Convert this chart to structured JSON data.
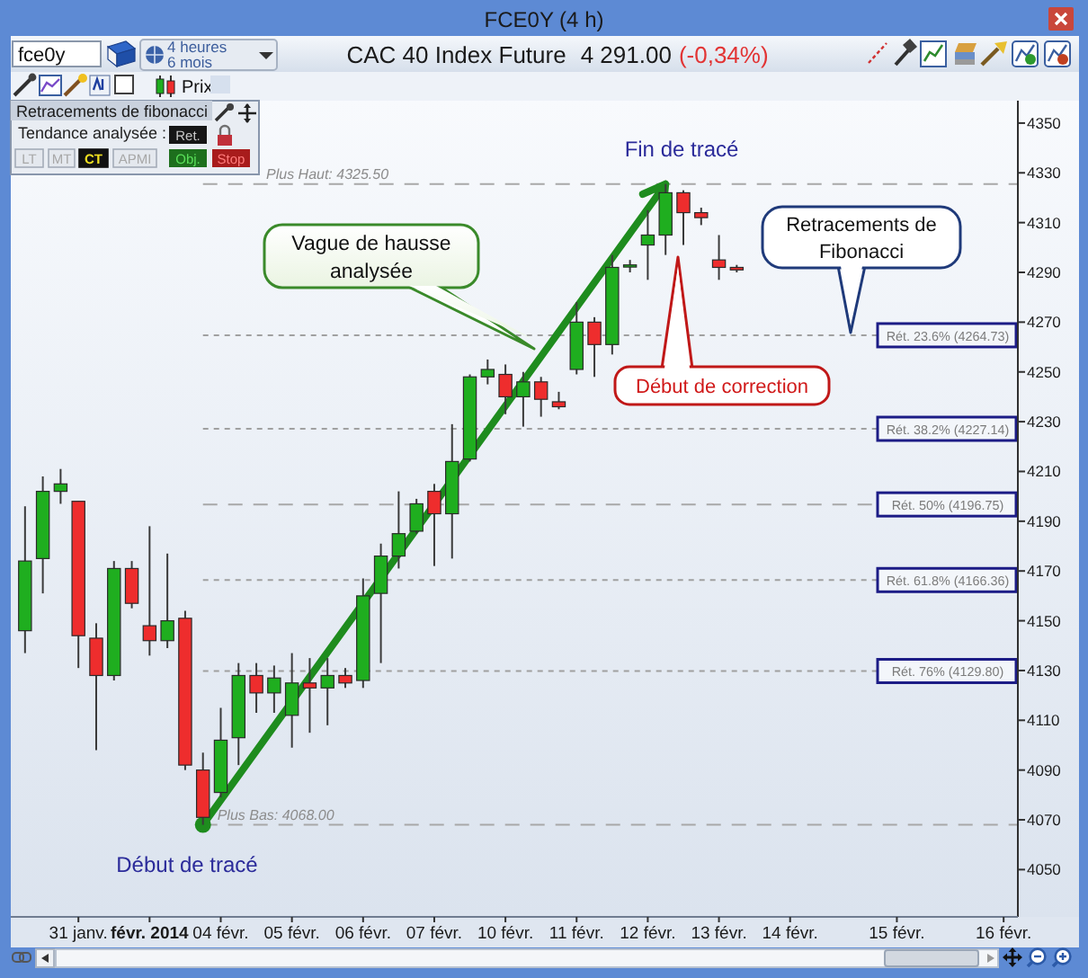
{
  "chart_data": {
    "type": "candlestick",
    "title": "FCE0Y (4 h)",
    "subtitle": "CAC 40 Index Future",
    "categories": [
      null,
      null,
      null,
      "31 janv.",
      null,
      null,
      null,
      "févr. 2014",
      null,
      null,
      null,
      "04 févr.",
      null,
      null,
      null,
      "05 févr.",
      null,
      null,
      null,
      "06 févr.",
      null,
      null,
      null,
      "07 févr.",
      null,
      null,
      null,
      "10 févr.",
      null,
      null,
      null,
      "11 févr.",
      null,
      null,
      null,
      "12 févr.",
      null,
      null,
      null,
      "13 févr.",
      null,
      null,
      null,
      "14 févr.",
      null,
      null,
      null,
      null,
      null,
      "15 févr.",
      null,
      null,
      null,
      null,
      null,
      "16 févr."
    ],
    "ohlc": [
      [
        4146,
        4196,
        4137,
        4174
      ],
      [
        4175,
        4208,
        4161,
        4202
      ],
      [
        4202,
        4211,
        4197,
        4205
      ],
      [
        4198,
        4198,
        4131,
        4144
      ],
      [
        4143,
        4149,
        4098,
        4128
      ],
      [
        4128,
        4174,
        4126,
        4171
      ],
      [
        4171,
        4174,
        4155,
        4157
      ],
      [
        4148,
        4188,
        4136,
        4142
      ],
      [
        4142,
        4177,
        4139,
        4150
      ],
      [
        4151,
        4154,
        4090,
        4092
      ],
      [
        4090,
        4097,
        4068,
        4071
      ],
      [
        4081,
        4115,
        4079,
        4102
      ],
      [
        4103,
        4133,
        4092,
        4128
      ],
      [
        4128,
        4133,
        4113,
        4121
      ],
      [
        4121,
        4132,
        4113,
        4127
      ],
      [
        4112,
        4137,
        4099,
        4125
      ],
      [
        4125,
        4135,
        4105,
        4123
      ],
      [
        4123,
        4135,
        4108,
        4128
      ],
      [
        4128,
        4131,
        4123,
        4125
      ],
      [
        4126,
        4167,
        4123,
        4160
      ],
      [
        4161,
        4181,
        4133,
        4176
      ],
      [
        4176,
        4202,
        4171,
        4185
      ],
      [
        4186,
        4199,
        4185,
        4197
      ],
      [
        4202,
        4205,
        4172,
        4193
      ],
      [
        4193,
        4229,
        4175,
        4214
      ],
      [
        4215,
        4249,
        4214,
        4248
      ],
      [
        4248,
        4255,
        4245,
        4251
      ],
      [
        4249,
        4253,
        4233,
        4240
      ],
      [
        4240,
        4250,
        4228,
        4246
      ],
      [
        4246,
        4248,
        4232,
        4239
      ],
      [
        4238,
        4242,
        4235,
        4236
      ],
      [
        4251,
        4278,
        4249,
        4270
      ],
      [
        4270,
        4272,
        4248,
        4261
      ],
      [
        4261,
        4297,
        4257,
        4292
      ],
      [
        4293,
        4295,
        4290,
        4293
      ],
      [
        4301,
        4315,
        4287,
        4305
      ],
      [
        4305,
        4325.5,
        4297,
        4322
      ],
      [
        4322,
        4323,
        4301,
        4314
      ],
      [
        4314,
        4316,
        4309,
        4312
      ],
      [
        4295,
        4305,
        4287,
        4292
      ],
      [
        4292,
        4293,
        4290,
        4291
      ],
      null,
      null,
      null,
      null,
      null,
      null,
      null,
      null,
      null,
      null,
      null,
      null,
      null,
      null,
      null
    ],
    "ylim": [
      4031,
      4359
    ],
    "yticks": [
      4050,
      4070,
      4090,
      4110,
      4130,
      4150,
      4170,
      4190,
      4210,
      4230,
      4250,
      4270,
      4290,
      4310,
      4330,
      4350
    ],
    "ref_lines": [
      {
        "axis": "y",
        "value": 4325.5,
        "label": "Plus Haut: 4325.50",
        "line_style": "dashed",
        "color": "#a8a8a8"
      },
      {
        "axis": "y",
        "value": 4264.73,
        "label": "Rét. 23.6% (4264.73)",
        "line_style": "dotted",
        "color": "#a0a0a0"
      },
      {
        "axis": "y",
        "value": 4227.14,
        "label": "Rét. 38.2% (4227.14)",
        "line_style": "dotted",
        "color": "#a0a0a0"
      },
      {
        "axis": "y",
        "value": 4196.75,
        "label": "Rét. 50% (4196.75)",
        "line_style": "dashed",
        "color": "#a8a8a8"
      },
      {
        "axis": "y",
        "value": 4166.36,
        "label": "Rét. 61.8% (4166.36)",
        "line_style": "dotted",
        "color": "#a0a0a0"
      },
      {
        "axis": "y",
        "value": 4129.8,
        "label": "Rét. 76% (4129.80)",
        "line_style": "dotted",
        "color": "#a0a0a0"
      },
      {
        "axis": "y",
        "value": 4068,
        "label": "Plus Bas: 4068.00",
        "line_style": "dashed",
        "color": "#a8a8a8"
      }
    ],
    "annotations": [
      "fce0y",
      "4 heures",
      "6 mois",
      "4 291.00",
      "(-0,34%)",
      "Prix",
      "Retracements de fibonacci",
      "Tendance analysée :",
      "LT",
      "MT",
      "CT",
      "APMI",
      "Ret.",
      "Obj.",
      "Stop",
      "Vague de hausse analysée",
      "Fin de tracé",
      "Début de tracé",
      "Retracements de Fibonacci",
      "Début de correction"
    ]
  }
}
